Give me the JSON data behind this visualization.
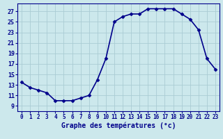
{
  "x": [
    0,
    1,
    2,
    3,
    4,
    5,
    6,
    7,
    8,
    9,
    10,
    11,
    12,
    13,
    14,
    15,
    16,
    17,
    18,
    19,
    20,
    21,
    22,
    23
  ],
  "y": [
    13.5,
    12.5,
    12.0,
    11.5,
    10.0,
    10.0,
    10.0,
    10.5,
    11.0,
    14.0,
    18.0,
    25.0,
    26.0,
    26.5,
    26.5,
    27.5,
    27.5,
    27.5,
    27.5,
    26.5,
    25.5,
    23.5,
    18.0,
    16.0
  ],
  "line_color": "#00008b",
  "marker": "D",
  "marker_size": 2.5,
  "bg_color": "#cce8ec",
  "grid_color": "#aaccd4",
  "xlabel": "Graphe des températures (°c)",
  "xlabel_fontsize": 7,
  "ytick_labels": [
    "9",
    "11",
    "13",
    "15",
    "17",
    "19",
    "21",
    "23",
    "25",
    "27"
  ],
  "ytick_values": [
    9,
    11,
    13,
    15,
    17,
    19,
    21,
    23,
    25,
    27
  ],
  "ylim": [
    8.0,
    28.5
  ],
  "xlim": [
    -0.5,
    23.5
  ],
  "tick_color": "#00008b",
  "label_color": "#00008b",
  "tick_fontsize": 5.5,
  "linewidth": 1.2
}
